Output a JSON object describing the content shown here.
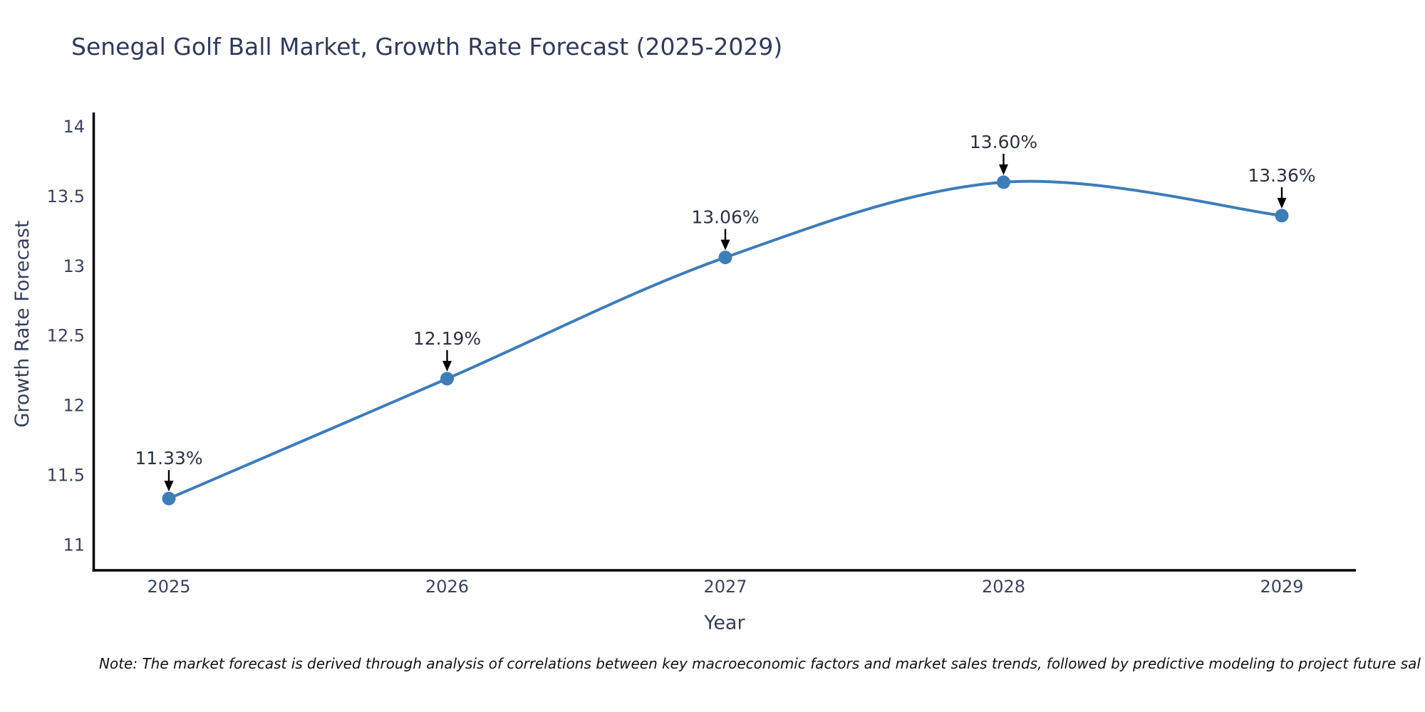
{
  "note": "Note: The market forecast is derived through analysis of correlations between key macroeconomic factors and market sales trends, followed by predictive modeling to project future sal",
  "chart_data": {
    "type": "line",
    "title": "Senegal Golf Ball Market, Growth Rate Forecast (2025-2029)",
    "xlabel": "Year",
    "ylabel": "Growth Rate Forecast",
    "x": [
      2025,
      2026,
      2027,
      2028,
      2029
    ],
    "xtick_labels": [
      "2025",
      "2026",
      "2027",
      "2028",
      "2029"
    ],
    "series": [
      {
        "name": "Growth Rate Forecast",
        "values": [
          11.33,
          12.19,
          13.06,
          13.6,
          13.36
        ]
      }
    ],
    "point_labels": [
      "11.33%",
      "12.19%",
      "13.06%",
      "13.60%",
      "13.36%"
    ],
    "yticks": [
      11,
      11.5,
      12,
      12.5,
      13,
      13.5,
      14
    ],
    "ytick_labels": [
      "11",
      "11.5",
      "12",
      "12.5",
      "13",
      "13.5",
      "14"
    ],
    "ylim": [
      10.815,
      14.1
    ],
    "grid": false,
    "legend": "none",
    "curve": "spline",
    "annotation_arrows": true,
    "colors": {
      "line": "#3e7cb8",
      "marker": "#3f7db6",
      "axis": "#000000",
      "title_text": "#31395a",
      "tick_text": "#3a425c",
      "annotation_text": "#2b3240",
      "arrow": "#000000",
      "note_text": "#111111",
      "background": "#ffffff"
    }
  }
}
